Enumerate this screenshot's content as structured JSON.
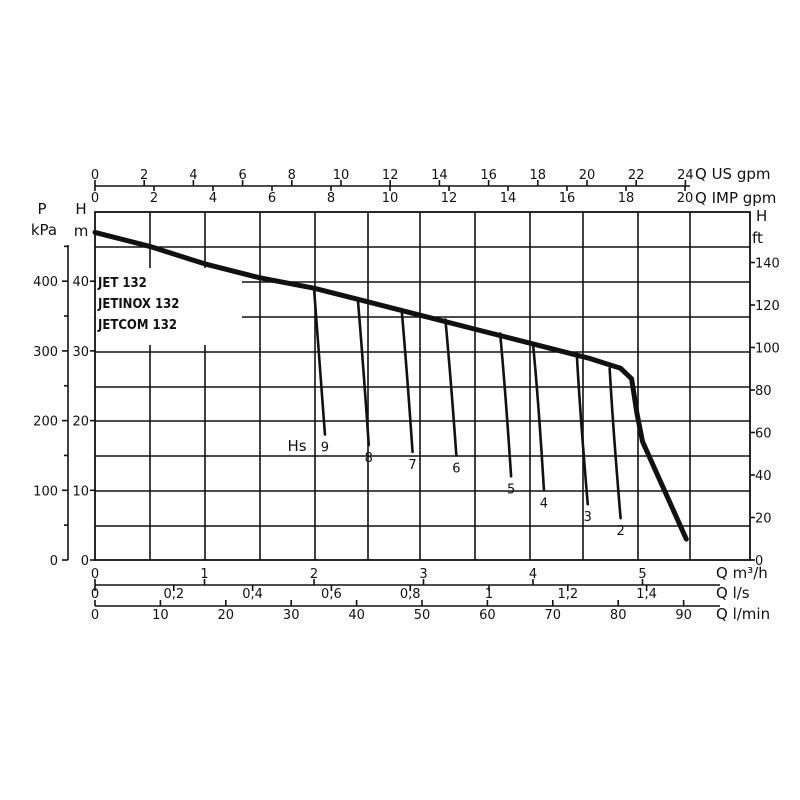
{
  "chart_data": {
    "type": "line",
    "title": "",
    "models": [
      "JET 132",
      "JETINOX 132",
      "JETCOM 132"
    ],
    "axes": {
      "x_bottom": [
        {
          "label": "Q m³/h",
          "ticks": [
            "0",
            "1",
            "2",
            "3",
            "4",
            "5"
          ],
          "range": [
            0,
            5.5
          ]
        },
        {
          "label": "Q l/s",
          "ticks": [
            "0",
            "0,2",
            "0,4",
            "0,6",
            "0,8",
            "1",
            "1,2",
            "1,4"
          ],
          "range": [
            0,
            1.528
          ]
        },
        {
          "label": "Q l/min",
          "ticks": [
            "0",
            "10",
            "20",
            "30",
            "40",
            "50",
            "60",
            "70",
            "80",
            "90"
          ],
          "range": [
            0,
            91.7
          ]
        }
      ],
      "x_top": [
        {
          "label": "Q US gpm",
          "ticks": [
            "0",
            "2",
            "4",
            "6",
            "8",
            "10",
            "12",
            "14",
            "16",
            "18",
            "20",
            "22",
            "24"
          ]
        },
        {
          "label": "Q IMP gpm",
          "ticks": [
            "0",
            "2",
            "4",
            "6",
            "8",
            "10",
            "12",
            "14",
            "16",
            "18",
            "20"
          ]
        }
      ],
      "y_left": [
        {
          "label": "P kPa",
          "ticks": [
            "0",
            "100",
            "200",
            "300",
            "400"
          ]
        },
        {
          "label": "H m",
          "ticks": [
            "0",
            "10",
            "20",
            "30",
            "40"
          ],
          "range": [
            0,
            48
          ]
        }
      ],
      "y_right": {
        "label": "H ft",
        "ticks": [
          "0",
          "20",
          "40",
          "60",
          "80",
          "100",
          "120",
          "140"
        ]
      }
    },
    "hs_label": "Hs",
    "series": [
      {
        "name": "",
        "x": [
          0,
          0.5,
          1.0,
          1.5,
          2.0,
          2.5,
          3.0,
          3.5,
          4.0,
          4.5,
          4.8,
          4.9,
          4.95,
          5.0,
          5.2,
          5.4
        ],
        "y": [
          47,
          45,
          42.5,
          40.5,
          39,
          37,
          35,
          33,
          31,
          29,
          27.5,
          26,
          21,
          17,
          10,
          3
        ]
      }
    ],
    "branches": [
      {
        "label": "9",
        "x": [
          2.0,
          2.05,
          2.1
        ],
        "y": [
          39,
          28,
          18
        ]
      },
      {
        "label": "8",
        "x": [
          2.4,
          2.45,
          2.5
        ],
        "y": [
          37.5,
          28,
          16.5
        ]
      },
      {
        "label": "7",
        "x": [
          2.8,
          2.85,
          2.9
        ],
        "y": [
          36,
          27,
          15.5
        ]
      },
      {
        "label": "6",
        "x": [
          3.2,
          3.25,
          3.3
        ],
        "y": [
          34.5,
          26,
          15
        ]
      },
      {
        "label": "5",
        "x": [
          3.7,
          3.75,
          3.8
        ],
        "y": [
          32.5,
          24,
          12
        ]
      },
      {
        "label": "4",
        "x": [
          4.0,
          4.05,
          4.1
        ],
        "y": [
          31,
          23,
          10
        ]
      },
      {
        "label": "3",
        "x": [
          4.4,
          4.43,
          4.5
        ],
        "y": [
          29.5,
          21,
          8
        ]
      },
      {
        "label": "2",
        "x": [
          4.7,
          4.73,
          4.8
        ],
        "y": [
          27.5,
          19,
          6
        ]
      }
    ]
  }
}
